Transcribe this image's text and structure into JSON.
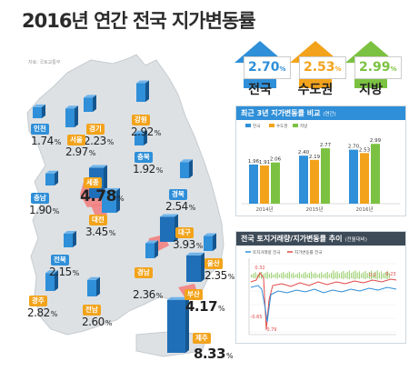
{
  "title": "2016년 연간 전국 지가변동률",
  "source": "자료: 국토교통부",
  "regions": [
    {
      "id": "incheon",
      "name": "인천",
      "value": "1.74",
      "color": "blue"
    },
    {
      "id": "gyeonggi",
      "name": "경기",
      "value": "2.23",
      "color": "orange"
    },
    {
      "id": "seoul",
      "name": "서울",
      "value": "2.97",
      "color": "orange"
    },
    {
      "id": "gangwon",
      "name": "강원",
      "value": "2.92",
      "color": "orange"
    },
    {
      "id": "chungbuk",
      "name": "충북",
      "value": "1.92",
      "color": "blue"
    },
    {
      "id": "sejong",
      "name": "세종",
      "value": "4.78",
      "color": "orange"
    },
    {
      "id": "chungnam",
      "name": "충남",
      "value": "1.90",
      "color": "blue"
    },
    {
      "id": "gyeongbuk",
      "name": "경북",
      "value": "2.54",
      "color": "blue"
    },
    {
      "id": "daejeon",
      "name": "대전",
      "value": "3.45",
      "color": "orange"
    },
    {
      "id": "daegu",
      "name": "대구",
      "value": "3.93",
      "color": "orange"
    },
    {
      "id": "jeonbuk",
      "name": "전북",
      "value": "2.15",
      "color": "blue"
    },
    {
      "id": "ulsan",
      "name": "울산",
      "value": "2.35",
      "color": "orange"
    },
    {
      "id": "gyeongnam",
      "name": "경남",
      "value": "2.36",
      "color": "orange"
    },
    {
      "id": "busan",
      "name": "부산",
      "value": "4.17",
      "color": "orange"
    },
    {
      "id": "gwangju",
      "name": "광주",
      "value": "2.82",
      "color": "orange"
    },
    {
      "id": "jeonnam",
      "name": "전남",
      "value": "2.60",
      "color": "orange"
    },
    {
      "id": "jeju",
      "name": "제주",
      "value": "8.33",
      "color": "orange"
    }
  ],
  "pct": "%",
  "summary": [
    {
      "name": "전국",
      "value": "2.70",
      "color": "#2f8fd8"
    },
    {
      "name": "수도권",
      "value": "2.53",
      "color": "#f2a31b"
    },
    {
      "name": "지방",
      "value": "2.99",
      "color": "#7cc242"
    }
  ],
  "colors": {
    "blue": "#2f8fd8",
    "orange": "#f2a31b",
    "green": "#7cc242",
    "dark": "#3d4a57"
  },
  "chart_data": [
    {
      "type": "bar",
      "title": "최근 3년 지가변동률 비교",
      "title_note": "(연간)",
      "categories": [
        "2014년",
        "2015년",
        "2016년"
      ],
      "series": [
        {
          "name": "전국",
          "values": [
            1.96,
            2.4,
            2.7
          ]
        },
        {
          "name": "수도권",
          "values": [
            1.91,
            2.19,
            2.53
          ]
        },
        {
          "name": "지방",
          "values": [
            2.06,
            2.77,
            2.99
          ]
        }
      ]
    },
    {
      "type": "line",
      "title": "전국 토지거래량/지가변동률 추이",
      "title_note": "(전월대비)",
      "legend": [
        "토지거래량 전국",
        "지가변동률 전국"
      ],
      "annotations": [
        "0.32",
        "-0.65",
        "-0.79",
        "0.2",
        "0.23"
      ]
    }
  ]
}
